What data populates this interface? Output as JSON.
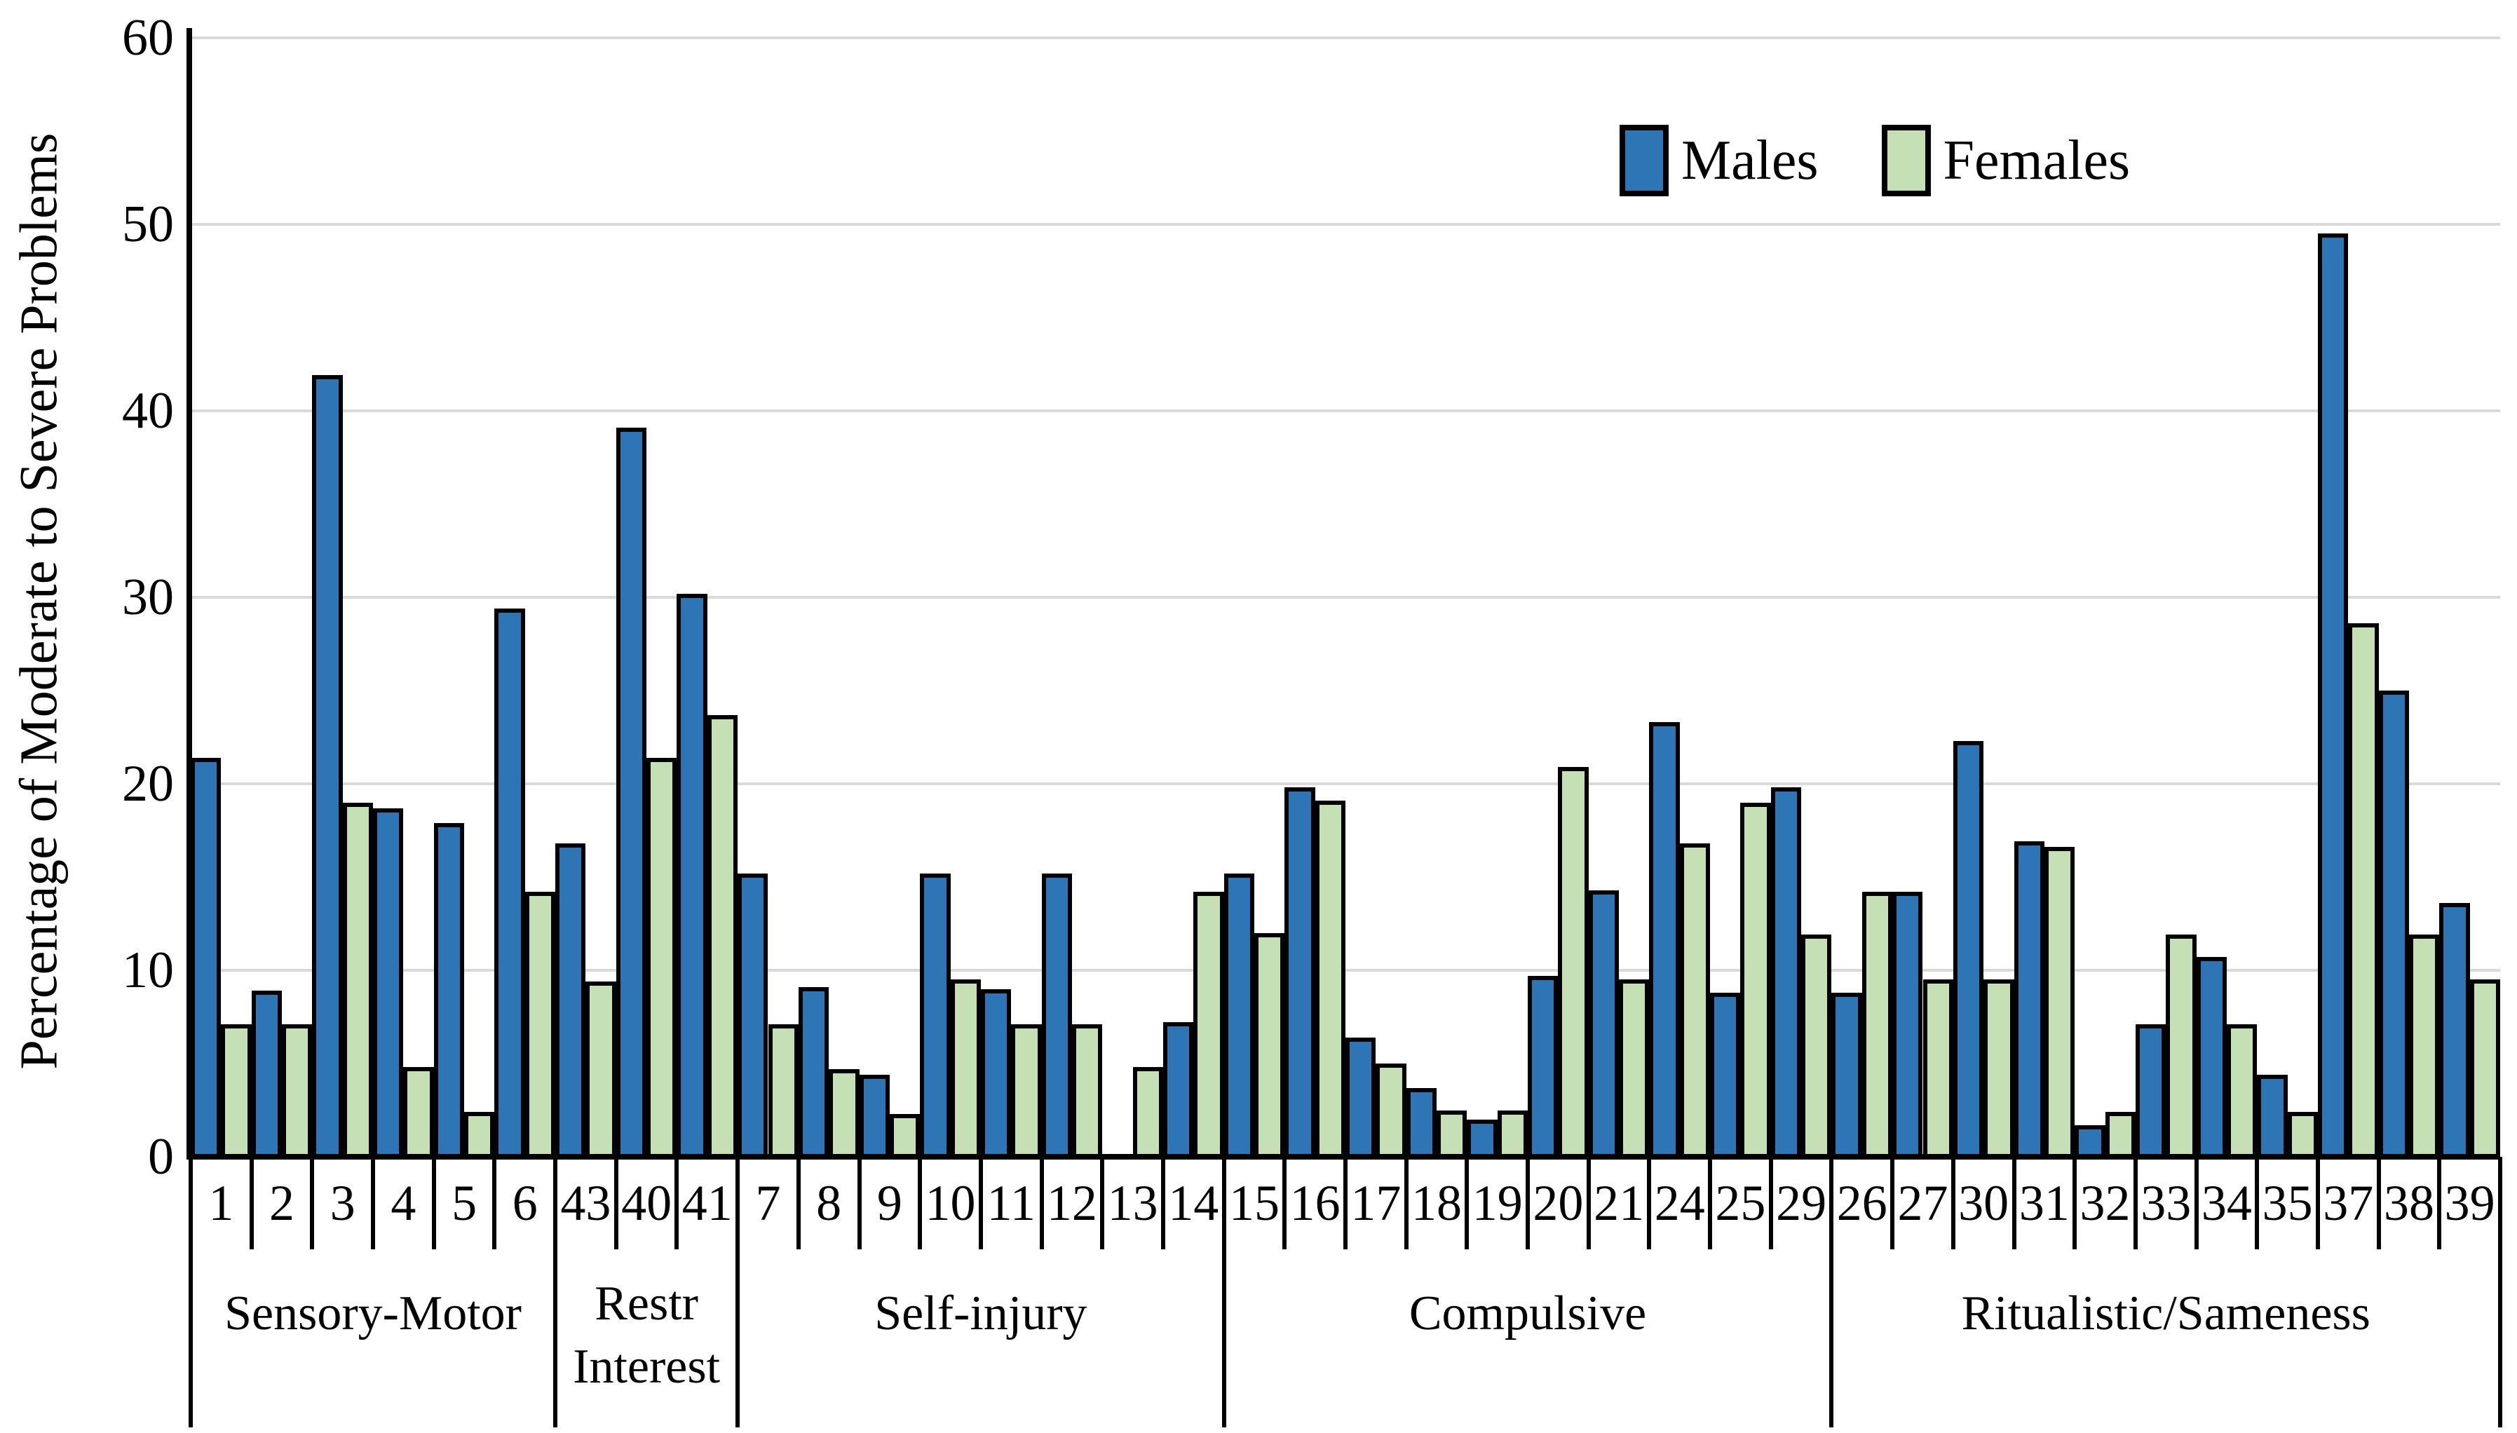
{
  "chart_data": {
    "type": "bar",
    "title": "",
    "ylabel": "Percentage of Moderate to Severe Problems",
    "xlabel": "",
    "ylim": [
      0,
      60
    ],
    "yticks": [
      0,
      10,
      20,
      30,
      40,
      50,
      60
    ],
    "grid": true,
    "legend_position": "top-right-inside",
    "categories": [
      "1",
      "2",
      "3",
      "4",
      "5",
      "6",
      "43",
      "40",
      "41",
      "7",
      "8",
      "9",
      "10",
      "11",
      "12",
      "13",
      "14",
      "15",
      "16",
      "17",
      "18",
      "19",
      "20",
      "21",
      "24",
      "25",
      "29",
      "26",
      "27",
      "30",
      "31",
      "32",
      "33",
      "34",
      "35",
      "37",
      "38",
      "39"
    ],
    "groups": [
      {
        "label_lines": [
          "Sensory-Motor"
        ],
        "count": 6
      },
      {
        "label_lines": [
          "Restr",
          "Interest"
        ],
        "count": 3
      },
      {
        "label_lines": [
          "Self-injury"
        ],
        "count": 8
      },
      {
        "label_lines": [
          "Compulsive"
        ],
        "count": 10
      },
      {
        "label_lines": [
          "Ritualistic/Sameness"
        ],
        "count": 11
      }
    ],
    "series": [
      {
        "name": "Males",
        "color": "#2E75B6",
        "values": [
          21.4,
          8.9,
          41.9,
          18.7,
          17.9,
          29.4,
          16.8,
          39.1,
          30.2,
          15.2,
          9.1,
          4.4,
          15.2,
          9.0,
          15.2,
          0,
          7.2,
          15.2,
          19.8,
          6.4,
          3.7,
          2.0,
          9.7,
          14.3,
          23.3,
          8.8,
          19.8,
          8.8,
          14.2,
          22.3,
          16.9,
          1.7,
          7.1,
          10.7,
          4.4,
          49.5,
          25.0,
          13.6
        ]
      },
      {
        "name": "Females",
        "color": "#C5E0B4",
        "values": [
          7.1,
          7.1,
          19.0,
          4.8,
          2.4,
          14.2,
          9.4,
          21.4,
          23.7,
          7.1,
          4.7,
          2.3,
          9.5,
          7.1,
          7.1,
          4.8,
          14.2,
          12.0,
          19.1,
          5.0,
          2.5,
          2.5,
          20.9,
          9.5,
          16.8,
          19.0,
          11.9,
          14.2,
          9.5,
          9.5,
          16.6,
          2.4,
          11.9,
          7.1,
          2.4,
          28.6,
          11.9,
          9.5
        ]
      }
    ],
    "colors": {
      "bar_border": "#000000",
      "gridline": "#D9D9D9",
      "axis": "#000000",
      "text": "#000000"
    }
  },
  "legend": {
    "males_label": "Males",
    "females_label": "Females"
  },
  "y_axis": {
    "title": "Percentage of Moderate to Severe Problems"
  }
}
